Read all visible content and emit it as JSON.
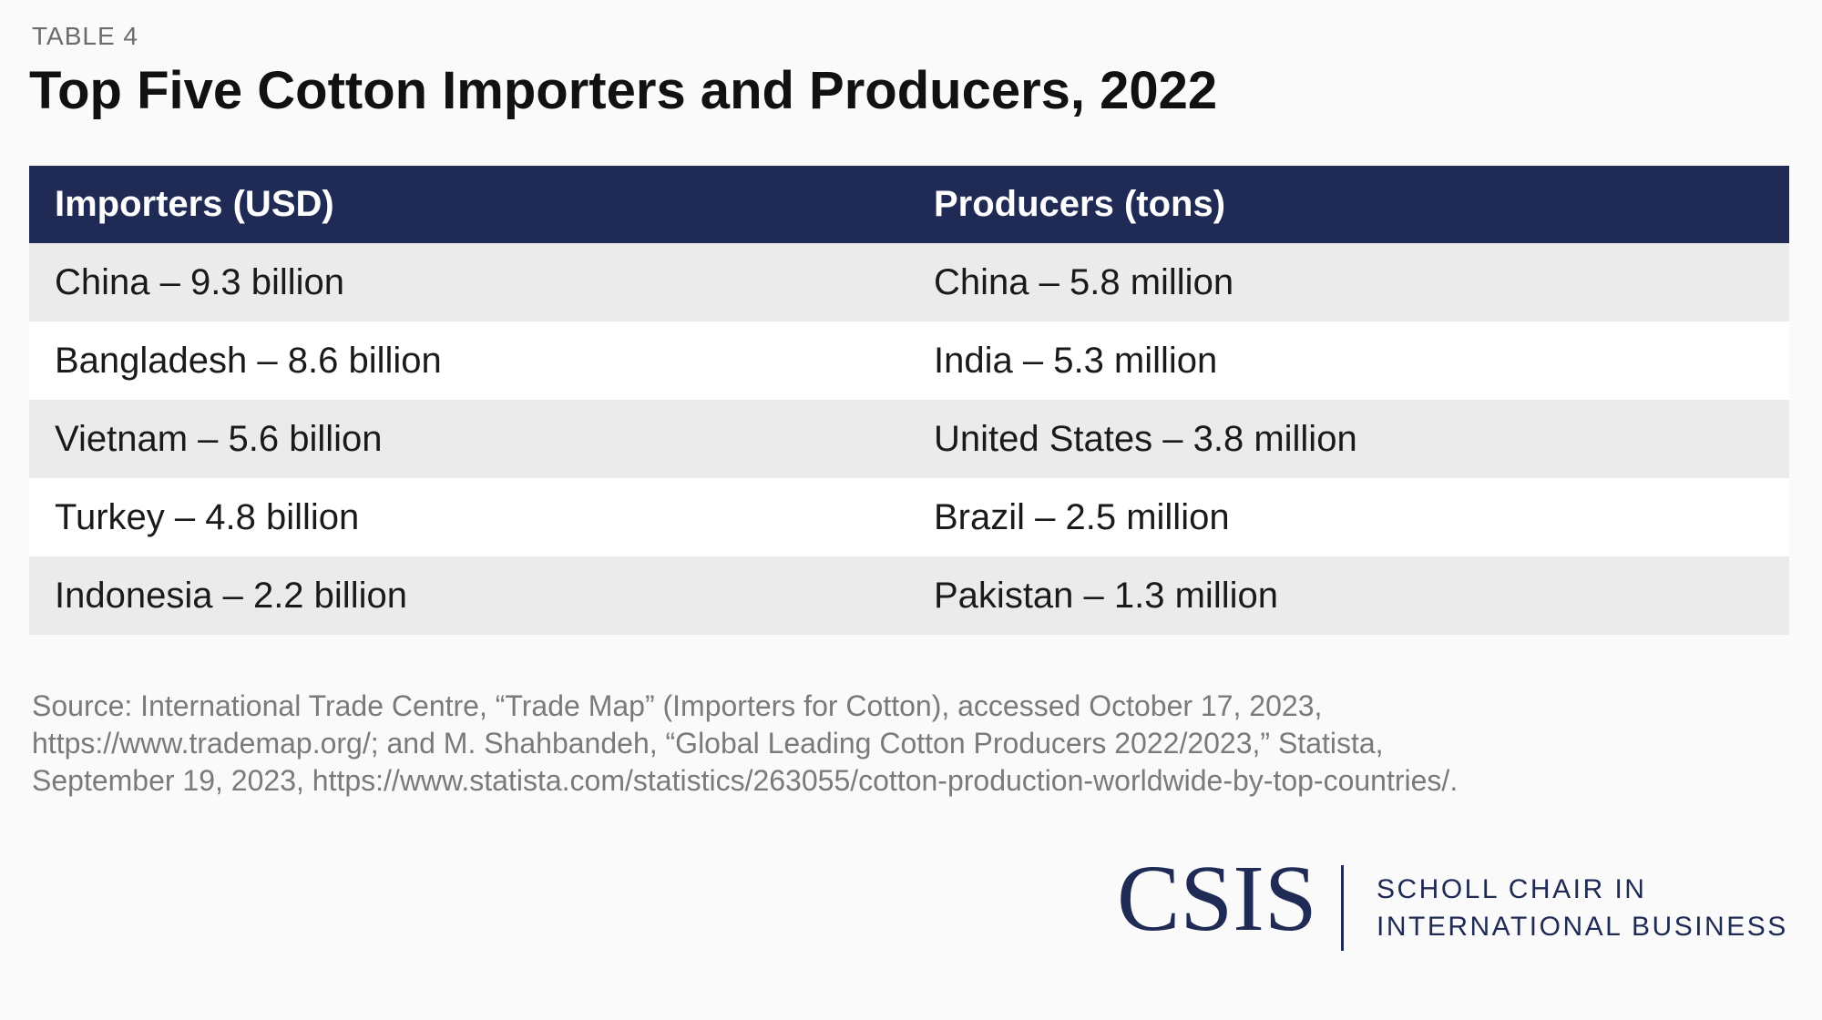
{
  "header": {
    "label": "TABLE 4",
    "title": "Top Five Cotton Importers and Producers, 2022"
  },
  "table": {
    "columns": [
      "Importers (USD)",
      "Producers (tons)"
    ],
    "rows": [
      [
        "China – 9.3 billion",
        "China – 5.8 million"
      ],
      [
        "Bangladesh – 8.6 billion",
        "India – 5.3 million"
      ],
      [
        "Vietnam – 5.6 billion",
        "United States – 3.8 million"
      ],
      [
        "Turkey – 4.8 billion",
        "Brazil – 2.5 million"
      ],
      [
        "Indonesia – 2.2 billion",
        "Pakistan – 1.3 million"
      ]
    ]
  },
  "source": {
    "lines": [
      "Source: International Trade Centre, “Trade Map” (Importers for Cotton), accessed October 17, 2023,",
      "https://www.trademap.org/; and M. Shahbandeh, “Global Leading Cotton Producers 2022/2023,” Statista,",
      "September 19, 2023, https://www.statista.com/statistics/263055/cotton-production-worldwide-by-top-countries/."
    ]
  },
  "logo": {
    "name": "CSIS",
    "lines": [
      "SCHOLL CHAIR IN",
      "INTERNATIONAL BUSINESS"
    ]
  }
}
